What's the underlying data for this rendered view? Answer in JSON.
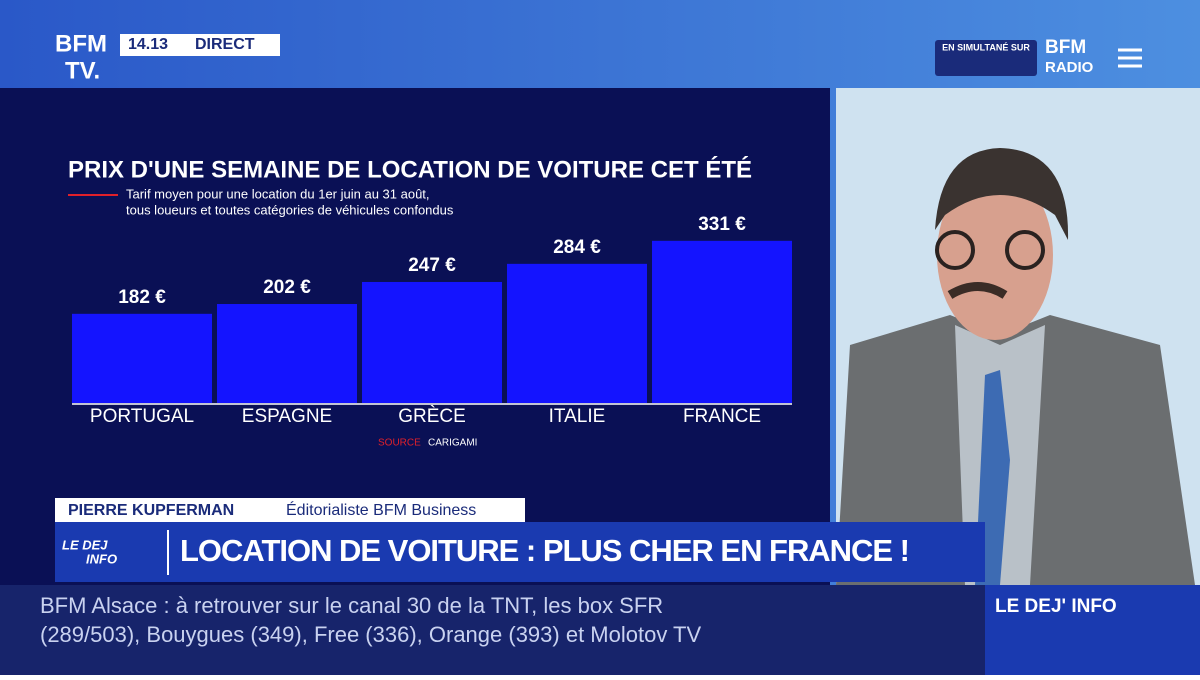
{
  "header": {
    "logo_top": "BFM",
    "logo_bottom": "TV.",
    "time": "14.13",
    "live": "DIRECT",
    "simulcast": "EN SIMULTANÉ SUR",
    "radio_top": "BFM",
    "radio_bottom": "RADIO"
  },
  "chart_data": {
    "type": "bar",
    "title": "PRIX D'UNE SEMAINE DE LOCATION DE VOITURE CET ÉTÉ",
    "subtitle": [
      "Tarif moyen pour une location du 1er juin au 31 août,",
      "tous loueurs et toutes catégories de véhicules confondus"
    ],
    "categories": [
      "PORTUGAL",
      "ESPAGNE",
      "GRÈCE",
      "ITALIE",
      "FRANCE"
    ],
    "values": [
      182,
      202,
      247,
      284,
      331
    ],
    "value_labels": [
      "182 €",
      "202 €",
      "247 €",
      "284 €",
      "331 €"
    ],
    "color": "#1414ff",
    "source_label": "SOURCE",
    "source": "CARIGAMI"
  },
  "lower_third": {
    "name": "PIERRE KUPFERMAN",
    "role": "Éditorialiste BFM Business",
    "show_logo_top": "LE DEJ",
    "show_logo_bottom": "INFO",
    "headline": "LOCATION DE VOITURE : PLUS CHER EN FRANCE !"
  },
  "ticker": {
    "lines": [
      "BFM Alsace : à retrouver sur le canal 30 de la TNT, les box SFR",
      "(289/503), Bouygues (349), Free (336), Orange (393) et Molotov TV"
    ],
    "show": "LE DEJ' INFO"
  }
}
